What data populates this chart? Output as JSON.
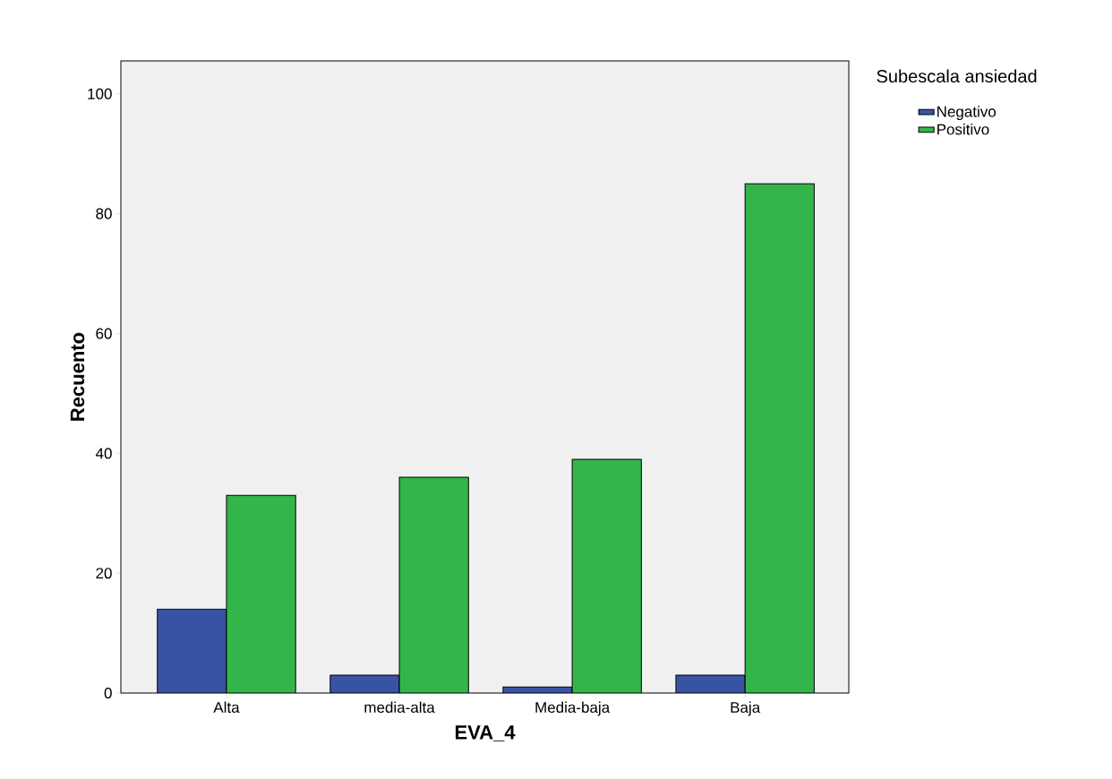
{
  "chart_data": {
    "type": "bar",
    "xlabel": "EVA_4",
    "ylabel": "Recuento",
    "legend_title": "Subescala ansiedad",
    "legend": "top right",
    "grid": false,
    "categories": [
      "Alta",
      "media-alta",
      "Media-baja",
      "Baja"
    ],
    "series": [
      {
        "name": "Negativo",
        "color": "#3953a4",
        "values": [
          14,
          3,
          1,
          3
        ]
      },
      {
        "name": "Positivo",
        "color": "#33b54a",
        "values": [
          33,
          36,
          39,
          85
        ]
      }
    ],
    "ylim": [
      0,
      105.5
    ],
    "yticks": [
      0,
      20,
      40,
      60,
      80,
      100
    ]
  }
}
